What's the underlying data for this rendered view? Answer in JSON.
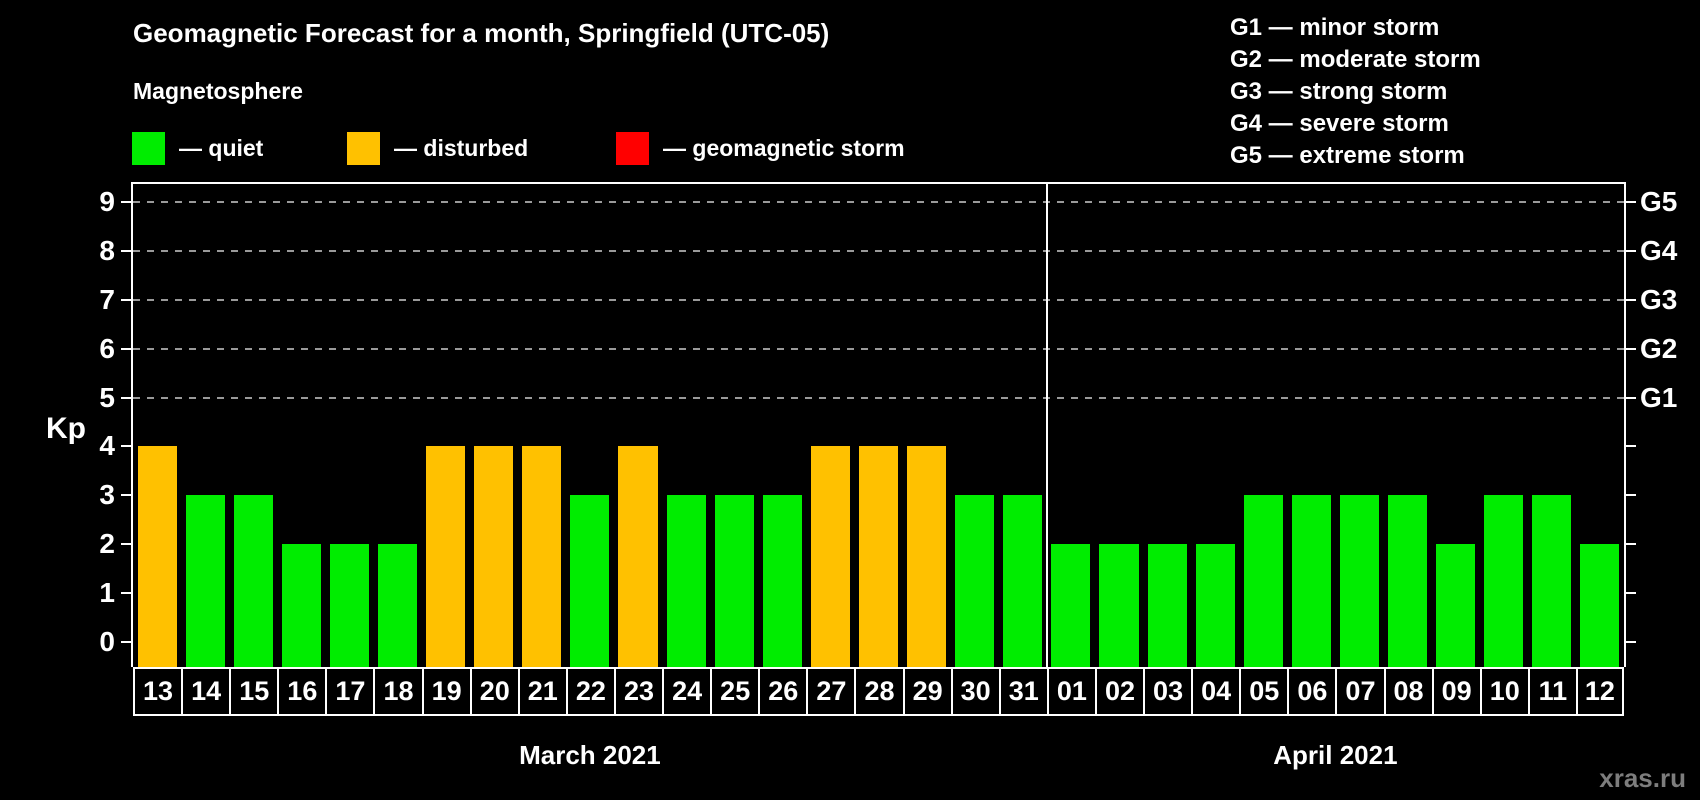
{
  "title": "Geomagnetic Forecast for a month, Springfield (UTC-05)",
  "legend": {
    "title": "Magnetosphere",
    "items": [
      {
        "key": "quiet",
        "label": "— quiet",
        "color": "#00ed00"
      },
      {
        "key": "disturbed",
        "label": "— disturbed",
        "color": "#ffc100"
      },
      {
        "key": "storm",
        "label": "— geomagnetic storm",
        "color": "#ff0000"
      }
    ]
  },
  "g_legend": {
    "items": [
      "G1 — minor storm",
      "G2 — moderate storm",
      "G3 — strong storm",
      "G4 — severe storm",
      "G5 — extreme storm"
    ]
  },
  "watermark": "xras.ru",
  "chart_data": {
    "type": "bar",
    "title": "Geomagnetic Forecast for a month, Springfield (UTC-05)",
    "ylabel": "Kp",
    "ylim": [
      0,
      9
    ],
    "yticks": [
      0,
      1,
      2,
      3,
      4,
      5,
      6,
      7,
      8,
      9
    ],
    "grid_levels": [
      5,
      6,
      7,
      8,
      9
    ],
    "grid": "dashed horizontal lines at G-storm levels only",
    "right_axis": [
      {
        "level": 5,
        "label": "G1"
      },
      {
        "level": 6,
        "label": "G2"
      },
      {
        "level": 7,
        "label": "G3"
      },
      {
        "level": 8,
        "label": "G4"
      },
      {
        "level": 9,
        "label": "G5"
      }
    ],
    "bar_colors": {
      "quiet": "#00ed00",
      "disturbed": "#ffc100",
      "storm": "#ff0000"
    },
    "months": [
      {
        "label": "March 2021",
        "days": [
          {
            "day": "13",
            "kp": 4,
            "state": "disturbed"
          },
          {
            "day": "14",
            "kp": 3,
            "state": "quiet"
          },
          {
            "day": "15",
            "kp": 3,
            "state": "quiet"
          },
          {
            "day": "16",
            "kp": 2,
            "state": "quiet"
          },
          {
            "day": "17",
            "kp": 2,
            "state": "quiet"
          },
          {
            "day": "18",
            "kp": 2,
            "state": "quiet"
          },
          {
            "day": "19",
            "kp": 4,
            "state": "disturbed"
          },
          {
            "day": "20",
            "kp": 4,
            "state": "disturbed"
          },
          {
            "day": "21",
            "kp": 4,
            "state": "disturbed"
          },
          {
            "day": "22",
            "kp": 3,
            "state": "quiet"
          },
          {
            "day": "23",
            "kp": 4,
            "state": "disturbed"
          },
          {
            "day": "24",
            "kp": 3,
            "state": "quiet"
          },
          {
            "day": "25",
            "kp": 3,
            "state": "quiet"
          },
          {
            "day": "26",
            "kp": 3,
            "state": "quiet"
          },
          {
            "day": "27",
            "kp": 4,
            "state": "disturbed"
          },
          {
            "day": "28",
            "kp": 4,
            "state": "disturbed"
          },
          {
            "day": "29",
            "kp": 4,
            "state": "disturbed"
          },
          {
            "day": "30",
            "kp": 3,
            "state": "quiet"
          },
          {
            "day": "31",
            "kp": 3,
            "state": "quiet"
          }
        ]
      },
      {
        "label": "April 2021",
        "days": [
          {
            "day": "01",
            "kp": 2,
            "state": "quiet"
          },
          {
            "day": "02",
            "kp": 2,
            "state": "quiet"
          },
          {
            "day": "03",
            "kp": 2,
            "state": "quiet"
          },
          {
            "day": "04",
            "kp": 2,
            "state": "quiet"
          },
          {
            "day": "05",
            "kp": 3,
            "state": "quiet"
          },
          {
            "day": "06",
            "kp": 3,
            "state": "quiet"
          },
          {
            "day": "07",
            "kp": 3,
            "state": "quiet"
          },
          {
            "day": "08",
            "kp": 3,
            "state": "quiet"
          },
          {
            "day": "09",
            "kp": 2,
            "state": "quiet"
          },
          {
            "day": "10",
            "kp": 3,
            "state": "quiet"
          },
          {
            "day": "11",
            "kp": 3,
            "state": "quiet"
          },
          {
            "day": "12",
            "kp": 2,
            "state": "quiet"
          }
        ]
      }
    ]
  }
}
